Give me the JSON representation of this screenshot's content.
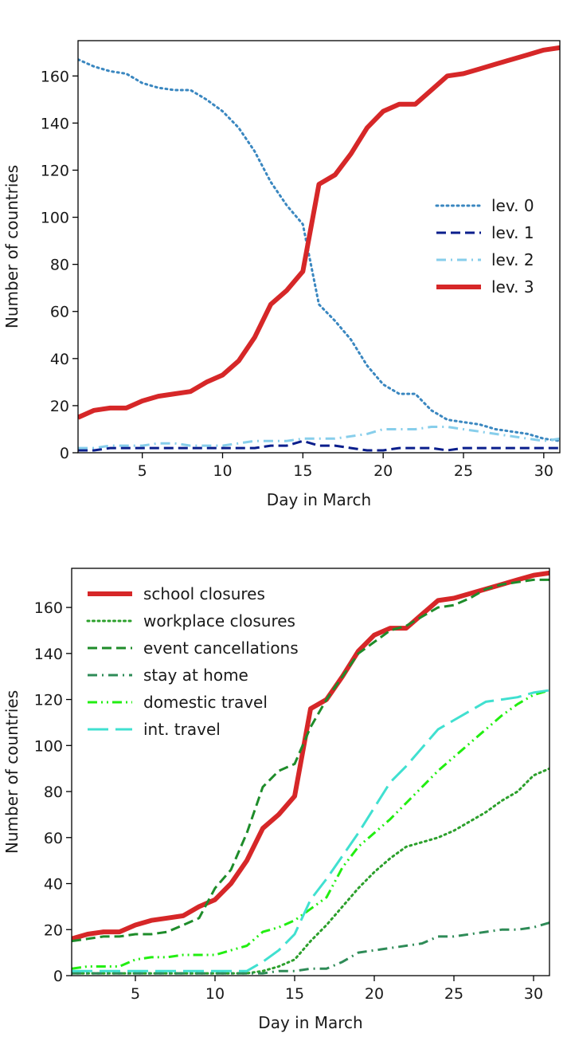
{
  "chart_data": [
    {
      "type": "line",
      "xlabel": "Day in March",
      "ylabel": "Number of countries",
      "xlim": [
        1,
        31
      ],
      "ylim": [
        0,
        175
      ],
      "xticks": [
        5,
        10,
        15,
        20,
        25,
        30
      ],
      "yticks": [
        0,
        20,
        40,
        60,
        80,
        100,
        120,
        140,
        160
      ],
      "grid": false,
      "legend_position": "center-right",
      "x": [
        1,
        2,
        3,
        4,
        5,
        6,
        7,
        8,
        9,
        10,
        11,
        12,
        13,
        14,
        15,
        16,
        17,
        18,
        19,
        20,
        21,
        22,
        23,
        24,
        25,
        26,
        27,
        28,
        29,
        30,
        31
      ],
      "series": [
        {
          "name": "lev. 0",
          "color": "#3a87c0",
          "style": "dotted",
          "values": [
            167,
            164,
            162,
            161,
            157,
            155,
            154,
            154,
            150,
            145,
            138,
            128,
            115,
            105,
            97,
            63,
            56,
            48,
            37,
            29,
            25,
            25,
            18,
            14,
            13,
            12,
            10,
            9,
            8,
            6,
            5
          ]
        },
        {
          "name": "lev. 1",
          "color": "#0a1e8c",
          "style": "dashed",
          "values": [
            1,
            1,
            2,
            2,
            2,
            2,
            2,
            2,
            2,
            2,
            2,
            2,
            3,
            3,
            5,
            3,
            3,
            2,
            1,
            1,
            2,
            2,
            2,
            1,
            2,
            2,
            2,
            2,
            2,
            2,
            2
          ]
        },
        {
          "name": "lev. 2",
          "color": "#87ceeb",
          "style": "dashdot",
          "values": [
            2,
            2,
            3,
            3,
            3,
            4,
            4,
            3,
            3,
            3,
            4,
            5,
            5,
            5,
            6,
            6,
            6,
            7,
            8,
            10,
            10,
            10,
            11,
            11,
            10,
            9,
            8,
            7,
            6,
            5,
            6
          ]
        },
        {
          "name": "lev. 3",
          "color": "#d62728",
          "style": "solid-thick",
          "values": [
            15,
            18,
            19,
            19,
            22,
            24,
            25,
            26,
            30,
            33,
            39,
            49,
            63,
            69,
            77,
            114,
            118,
            127,
            138,
            145,
            148,
            148,
            154,
            160,
            161,
            163,
            165,
            167,
            169,
            171,
            172
          ]
        }
      ]
    },
    {
      "type": "line",
      "xlabel": "Day in March",
      "ylabel": "Number of countries",
      "xlim": [
        1,
        31
      ],
      "ylim": [
        0,
        177
      ],
      "xticks": [
        5,
        10,
        15,
        20,
        25,
        30
      ],
      "yticks": [
        0,
        20,
        40,
        60,
        80,
        100,
        120,
        140,
        160
      ],
      "grid": false,
      "legend_position": "top-left",
      "x": [
        1,
        2,
        3,
        4,
        5,
        6,
        7,
        8,
        9,
        10,
        11,
        12,
        13,
        14,
        15,
        16,
        17,
        18,
        19,
        20,
        21,
        22,
        23,
        24,
        25,
        26,
        27,
        28,
        29,
        30,
        31
      ],
      "series": [
        {
          "name": "school closures",
          "color": "#d62728",
          "style": "solid-thick",
          "values": [
            16,
            18,
            19,
            19,
            22,
            24,
            25,
            26,
            30,
            33,
            40,
            50,
            64,
            70,
            78,
            116,
            120,
            130,
            141,
            148,
            151,
            151,
            157,
            163,
            164,
            166,
            168,
            170,
            172,
            174,
            175
          ]
        },
        {
          "name": "workplace closures",
          "color": "#2ca02c",
          "style": "dotted",
          "values": [
            1,
            1,
            1,
            1,
            1,
            1,
            1,
            1,
            1,
            1,
            1,
            1,
            2,
            4,
            7,
            15,
            22,
            30,
            38,
            45,
            51,
            56,
            58,
            60,
            63,
            67,
            71,
            76,
            80,
            87,
            90
          ]
        },
        {
          "name": "event cancellations",
          "color": "#1e8c2a",
          "style": "dashed",
          "values": [
            15,
            16,
            17,
            17,
            18,
            18,
            19,
            22,
            25,
            38,
            46,
            62,
            82,
            89,
            92,
            108,
            120,
            130,
            140,
            145,
            150,
            152,
            156,
            160,
            161,
            164,
            168,
            170,
            171,
            172,
            172
          ]
        },
        {
          "name": "stay at home",
          "color": "#2e8b57",
          "style": "dashdot",
          "values": [
            1,
            1,
            1,
            1,
            1,
            1,
            1,
            1,
            1,
            1,
            1,
            1,
            1,
            2,
            2,
            3,
            3,
            6,
            10,
            11,
            12,
            13,
            14,
            17,
            17,
            18,
            19,
            20,
            20,
            21,
            23
          ]
        },
        {
          "name": "domestic travel",
          "color": "#22ee11",
          "style": "dashdotdot",
          "values": [
            3,
            4,
            4,
            4,
            7,
            8,
            8,
            9,
            9,
            9,
            11,
            13,
            19,
            21,
            24,
            29,
            34,
            47,
            56,
            62,
            68,
            75,
            82,
            89,
            95,
            101,
            107,
            113,
            118,
            122,
            124
          ]
        },
        {
          "name": "int. travel",
          "color": "#40e0d0",
          "style": "longdash",
          "values": [
            2,
            2,
            2,
            2,
            2,
            2,
            2,
            2,
            2,
            2,
            2,
            2,
            6,
            11,
            18,
            33,
            42,
            52,
            62,
            73,
            84,
            91,
            99,
            107,
            111,
            115,
            119,
            120,
            121,
            123,
            124
          ]
        }
      ]
    }
  ]
}
